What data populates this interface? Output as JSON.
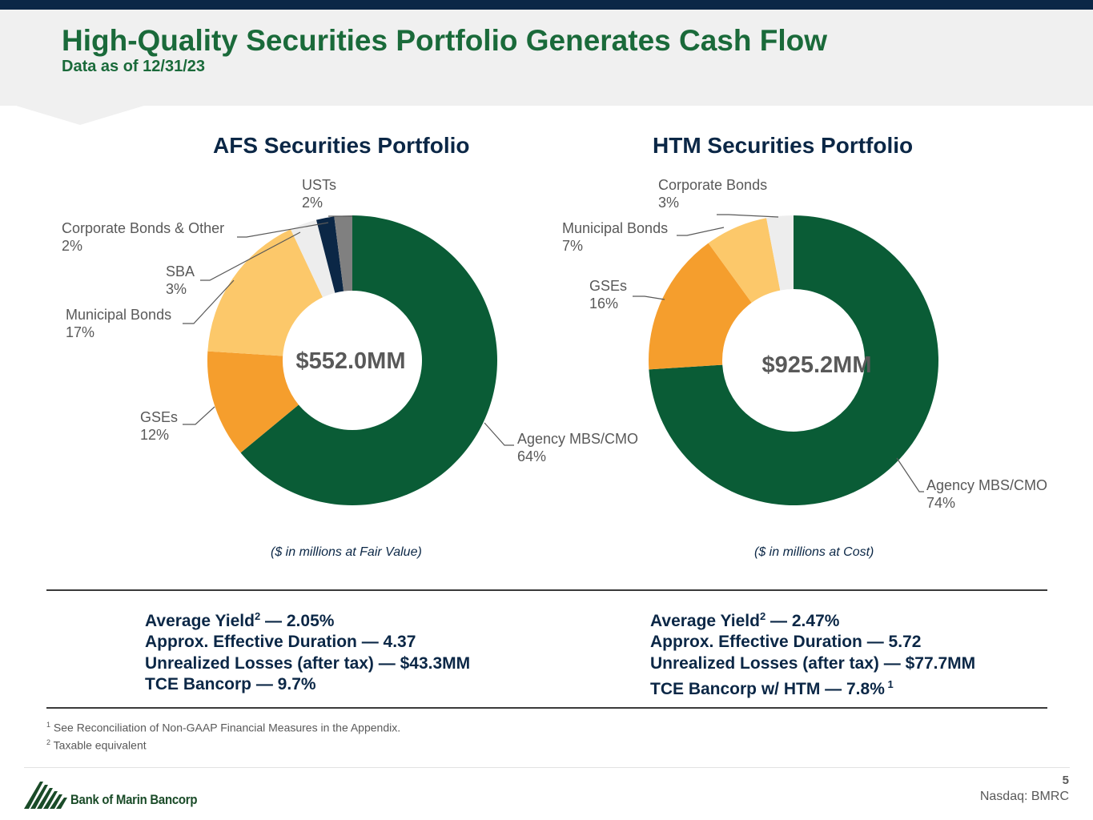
{
  "header": {
    "title": "High-Quality Securities Portfolio Generates Cash Flow",
    "subtitle": "Data as of 12/31/23"
  },
  "colors": {
    "agency": "#0a5c36",
    "gse": "#f59e2d",
    "municipal": "#fcc86a",
    "sba": "#ededed",
    "corporate_other": "#0b2746",
    "ust": "#808080",
    "header_band": "#f0f0f0",
    "title_green": "#1a6a3a",
    "navy": "#0b2746"
  },
  "chart_data": [
    {
      "type": "pie",
      "title": "AFS Securities Portfolio",
      "center_total": "$552.0MM",
      "caption": "($ in millions at Fair Value)",
      "slices": [
        {
          "name": "Agency MBS/CMO",
          "value": 64,
          "label": "64%",
          "color": "#0a5c36"
        },
        {
          "name": "GSEs",
          "value": 12,
          "label": "12%",
          "color": "#f59e2d"
        },
        {
          "name": "Municipal Bonds",
          "value": 17,
          "label": "17%",
          "color": "#fcc86a"
        },
        {
          "name": "SBA",
          "value": 3,
          "label": "3%",
          "color": "#ededed"
        },
        {
          "name": "Corporate Bonds & Other",
          "value": 2,
          "label": "2%",
          "color": "#0b2746"
        },
        {
          "name": "USTs",
          "value": 2,
          "label": "2%",
          "color": "#808080"
        }
      ]
    },
    {
      "type": "pie",
      "title": "HTM Securities Portfolio",
      "center_total": "$925.2MM",
      "caption": "($ in millions at Cost)",
      "slices": [
        {
          "name": "Agency MBS/CMO",
          "value": 74,
          "label": "74%",
          "color": "#0a5c36"
        },
        {
          "name": "GSEs",
          "value": 16,
          "label": "16%",
          "color": "#f59e2d"
        },
        {
          "name": "Municipal Bonds",
          "value": 7,
          "label": "7%",
          "color": "#fcc86a"
        },
        {
          "name": "Corporate Bonds",
          "value": 3,
          "label": "3%",
          "color": "#ededed"
        }
      ]
    }
  ],
  "stats": {
    "afs": [
      {
        "text": "Average Yield",
        "sup": "2",
        "value": " — 2.05%"
      },
      {
        "text": "Approx. Effective Duration — 4.37"
      },
      {
        "text": "Unrealized Losses (after tax) — $43.3MM"
      },
      {
        "text": "TCE Bancorp — 9.7%"
      }
    ],
    "htm": [
      {
        "text": "Average Yield",
        "sup": "2",
        "value": " — 2.47%"
      },
      {
        "text": "Approx. Effective Duration — 5.72"
      },
      {
        "text": "Unrealized Losses (after tax) — $77.7MM"
      },
      {
        "text": "TCE Bancorp w/ HTM — 7.8%",
        "sup_after": " 1"
      }
    ]
  },
  "footnotes": [
    {
      "mark": "1",
      "text": " See Reconciliation of Non-GAAP Financial Measures in the Appendix."
    },
    {
      "mark": "2",
      "text": " Taxable equivalent"
    }
  ],
  "footer": {
    "company": "Bank of Marin Bancorp",
    "page": "5",
    "ticker": "Nasdaq: BMRC"
  }
}
